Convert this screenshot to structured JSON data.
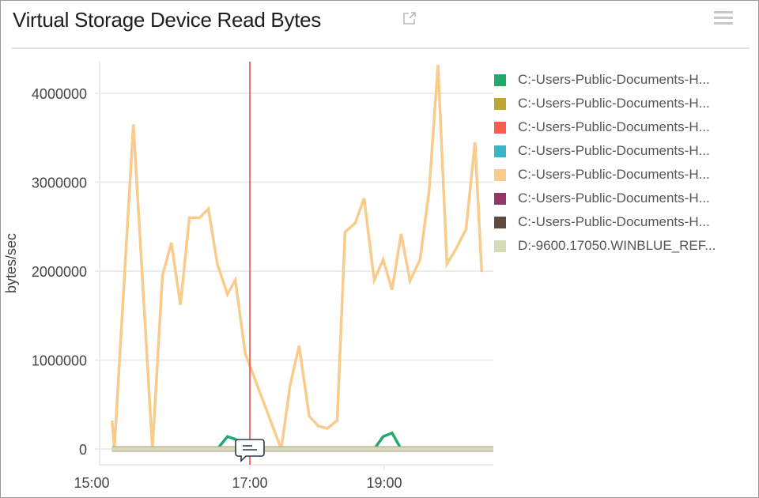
{
  "header": {
    "title": "Virtual Storage Device Read Bytes",
    "external_link_icon": "external-link-icon",
    "menu_icon": "hamburger-menu-icon"
  },
  "chart_data": {
    "type": "line",
    "title": "Virtual Storage Device Read Bytes",
    "xlabel": "",
    "ylabel": "bytes/sec",
    "ylim": [
      0,
      4000000
    ],
    "yticks": [
      "0",
      "1000000",
      "2000000",
      "3000000",
      "4000000"
    ],
    "xticks": [
      "15:00",
      "17:00",
      "19:00"
    ],
    "grid": true,
    "legend_position": "right",
    "marker_line": {
      "time": "17:00",
      "color": "#e8463a",
      "annotation_icon": "comment-icon"
    },
    "series": [
      {
        "name": "C:-Users-Public-Documents-H...",
        "color": "#22a86b",
        "points": [
          [
            "14:57",
            0
          ],
          [
            "16:31",
            0
          ],
          [
            "16:40",
            140000
          ],
          [
            "16:47",
            110000
          ],
          [
            "16:56",
            0
          ],
          [
            "18:51",
            0
          ],
          [
            "18:59",
            140000
          ],
          [
            "19:07",
            180000
          ],
          [
            "19:15",
            0
          ],
          [
            "20:27",
            0
          ]
        ]
      },
      {
        "name": "C:-Users-Public-Documents-H...",
        "color": "#bda634",
        "points": []
      },
      {
        "name": "C:-Users-Public-Documents-H...",
        "color": "#f95d50",
        "points": []
      },
      {
        "name": "C:-Users-Public-Documents-H...",
        "color": "#38b6c6",
        "points": []
      },
      {
        "name": "C:-Users-Public-Documents-H...",
        "color": "#f8cc8c",
        "points": [
          [
            "14:57",
            320000
          ],
          [
            "14:59",
            0
          ],
          [
            "15:16",
            3650000
          ],
          [
            "15:33",
            0
          ],
          [
            "15:42",
            1950000
          ],
          [
            "15:50",
            2320000
          ],
          [
            "15:58",
            1620000
          ],
          [
            "16:06",
            2600000
          ],
          [
            "16:15",
            2600000
          ],
          [
            "16:23",
            2700000
          ],
          [
            "16:31",
            2080000
          ],
          [
            "16:40",
            1740000
          ],
          [
            "16:47",
            1900000
          ],
          [
            "16:56",
            1070000
          ],
          [
            "17:28",
            0
          ],
          [
            "17:36",
            720000
          ],
          [
            "17:44",
            1160000
          ],
          [
            "17:53",
            370000
          ],
          [
            "18:01",
            260000
          ],
          [
            "18:09",
            230000
          ],
          [
            "18:18",
            320000
          ],
          [
            "18:25",
            2440000
          ],
          [
            "18:34",
            2540000
          ],
          [
            "18:42",
            2820000
          ],
          [
            "18:51",
            1900000
          ],
          [
            "18:59",
            2130000
          ],
          [
            "19:07",
            1790000
          ],
          [
            "19:15",
            2420000
          ],
          [
            "19:23",
            1890000
          ],
          [
            "19:32",
            2130000
          ],
          [
            "19:40",
            2900000
          ],
          [
            "19:48",
            4320000
          ],
          [
            "19:56",
            2080000
          ],
          [
            "20:04",
            2250000
          ],
          [
            "20:13",
            2470000
          ],
          [
            "20:21",
            3450000
          ],
          [
            "20:27",
            1990000
          ]
        ]
      },
      {
        "name": "C:-Users-Public-Documents-H...",
        "color": "#923668",
        "points": []
      },
      {
        "name": "C:-Users-Public-Documents-H...",
        "color": "#5f4b3e",
        "points": []
      },
      {
        "name": "D:-9600.17050.WINBLUE_REF...",
        "color": "#d6dab8",
        "points": [
          [
            "14:57",
            0
          ],
          [
            "20:38",
            0
          ]
        ]
      }
    ]
  }
}
